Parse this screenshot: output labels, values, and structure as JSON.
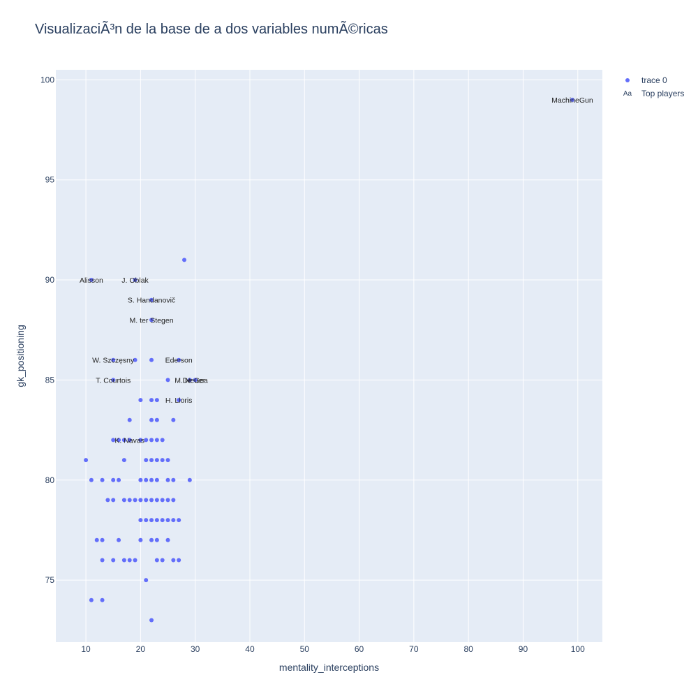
{
  "title": "VisualizaciÃ³n de la base de a dos variables numÃ©ricas",
  "chart_data": {
    "type": "scatter",
    "title": "VisualizaciÃ³n de la base de a dos variables numÃ©ricas",
    "xlabel": "mentality_interceptions",
    "ylabel": "gk_positioning",
    "xlim": [
      4.5,
      104.5
    ],
    "ylim": [
      71.9,
      100.5
    ],
    "xticks": [
      10,
      20,
      30,
      40,
      50,
      60,
      70,
      80,
      90,
      100
    ],
    "yticks": [
      75,
      80,
      85,
      90,
      95,
      100
    ],
    "grid": true,
    "legend_position": "top-right",
    "marker_color": "#636efa",
    "series": [
      {
        "name": "trace 0",
        "points": [
          [
            99,
            99
          ],
          [
            28,
            91
          ],
          [
            11,
            90
          ],
          [
            19,
            90
          ],
          [
            22,
            89
          ],
          [
            22,
            88
          ],
          [
            15,
            86
          ],
          [
            19,
            86
          ],
          [
            22,
            86
          ],
          [
            27,
            86
          ],
          [
            15,
            85
          ],
          [
            25,
            85
          ],
          [
            29,
            85
          ],
          [
            30,
            85
          ],
          [
            20,
            84
          ],
          [
            22,
            84
          ],
          [
            23,
            84
          ],
          [
            27,
            84
          ],
          [
            18,
            83
          ],
          [
            22,
            83
          ],
          [
            23,
            83
          ],
          [
            26,
            83
          ],
          [
            15,
            82
          ],
          [
            16,
            82
          ],
          [
            17,
            82
          ],
          [
            18,
            82
          ],
          [
            20,
            82
          ],
          [
            21,
            82
          ],
          [
            22,
            82
          ],
          [
            23,
            82
          ],
          [
            24,
            82
          ],
          [
            10,
            81
          ],
          [
            17,
            81
          ],
          [
            21,
            81
          ],
          [
            22,
            81
          ],
          [
            23,
            81
          ],
          [
            24,
            81
          ],
          [
            25,
            81
          ],
          [
            11,
            80
          ],
          [
            13,
            80
          ],
          [
            15,
            80
          ],
          [
            16,
            80
          ],
          [
            20,
            80
          ],
          [
            21,
            80
          ],
          [
            22,
            80
          ],
          [
            23,
            80
          ],
          [
            25,
            80
          ],
          [
            26,
            80
          ],
          [
            29,
            80
          ],
          [
            14,
            79
          ],
          [
            15,
            79
          ],
          [
            17,
            79
          ],
          [
            18,
            79
          ],
          [
            19,
            79
          ],
          [
            20,
            79
          ],
          [
            21,
            79
          ],
          [
            22,
            79
          ],
          [
            23,
            79
          ],
          [
            24,
            79
          ],
          [
            25,
            79
          ],
          [
            26,
            79
          ],
          [
            20,
            78
          ],
          [
            21,
            78
          ],
          [
            22,
            78
          ],
          [
            23,
            78
          ],
          [
            24,
            78
          ],
          [
            25,
            78
          ],
          [
            26,
            78
          ],
          [
            27,
            78
          ],
          [
            12,
            77
          ],
          [
            13,
            77
          ],
          [
            16,
            77
          ],
          [
            20,
            77
          ],
          [
            22,
            77
          ],
          [
            23,
            77
          ],
          [
            25,
            77
          ],
          [
            13,
            76
          ],
          [
            15,
            76
          ],
          [
            17,
            76
          ],
          [
            18,
            76
          ],
          [
            19,
            76
          ],
          [
            23,
            76
          ],
          [
            24,
            76
          ],
          [
            26,
            76
          ],
          [
            27,
            76
          ],
          [
            21,
            75
          ],
          [
            11,
            74
          ],
          [
            13,
            74
          ],
          [
            22,
            73
          ]
        ]
      },
      {
        "name": "Top players",
        "labels": [
          {
            "text": "MachineGun",
            "x": 99,
            "y": 99
          },
          {
            "text": "Alisson",
            "x": 11,
            "y": 90
          },
          {
            "text": "J. Oblak",
            "x": 19,
            "y": 90
          },
          {
            "text": "S. Handanovič",
            "x": 22,
            "y": 89
          },
          {
            "text": "M. ter Stegen",
            "x": 22,
            "y": 88
          },
          {
            "text": "W. Szczęsny",
            "x": 15,
            "y": 86
          },
          {
            "text": "Ederson",
            "x": 27,
            "y": 86
          },
          {
            "text": "T. Courtois",
            "x": 15,
            "y": 85
          },
          {
            "text": "M. Neuer",
            "x": 29,
            "y": 85
          },
          {
            "text": "De Gea",
            "x": 30,
            "y": 85
          },
          {
            "text": "H. Lloris",
            "x": 27,
            "y": 84
          },
          {
            "text": "K. Navas",
            "x": 18,
            "y": 82
          }
        ]
      }
    ],
    "legend": [
      {
        "symbol": "dot",
        "label": "trace 0"
      },
      {
        "symbol": "Aa",
        "label": "Top players"
      }
    ]
  }
}
